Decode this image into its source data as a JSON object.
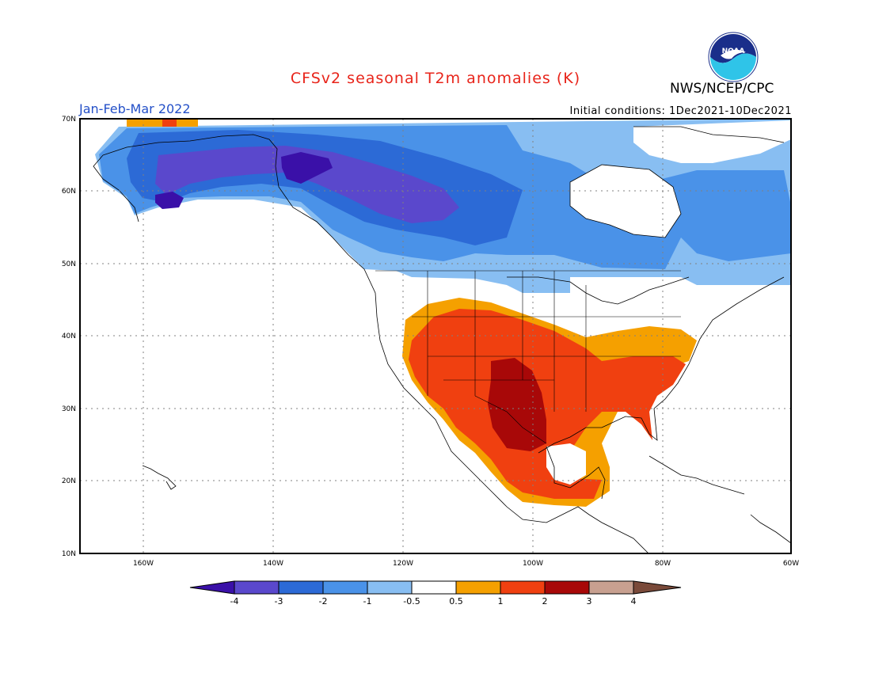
{
  "header": {
    "title": "CFSv2 seasonal T2m anomalies (K)",
    "agency": "NWS/NCEP/CPC",
    "logo_text": "NOAA",
    "period": "Jan-Feb-Mar 2022",
    "initial_conditions": "Initial conditions: 1Dec2021-10Dec2021"
  },
  "map": {
    "lon_labels": [
      "160W",
      "140W",
      "120W",
      "100W",
      "80W",
      "60W"
    ],
    "lat_labels": [
      "70N",
      "60N",
      "50N",
      "40N",
      "30N",
      "20N",
      "10N"
    ]
  },
  "colorbar": {
    "labels": [
      "-4",
      "-3",
      "-2",
      "-1",
      "-0.5",
      "0.5",
      "1",
      "2",
      "3",
      "4"
    ],
    "colors": [
      "#3a10a8",
      "#5a48cc",
      "#2c6ad6",
      "#4a92e8",
      "#88bef2",
      "#ffffff",
      "#f5a000",
      "#f04010",
      "#a80808",
      "#c8a090",
      "#7a4a3a"
    ]
  }
}
